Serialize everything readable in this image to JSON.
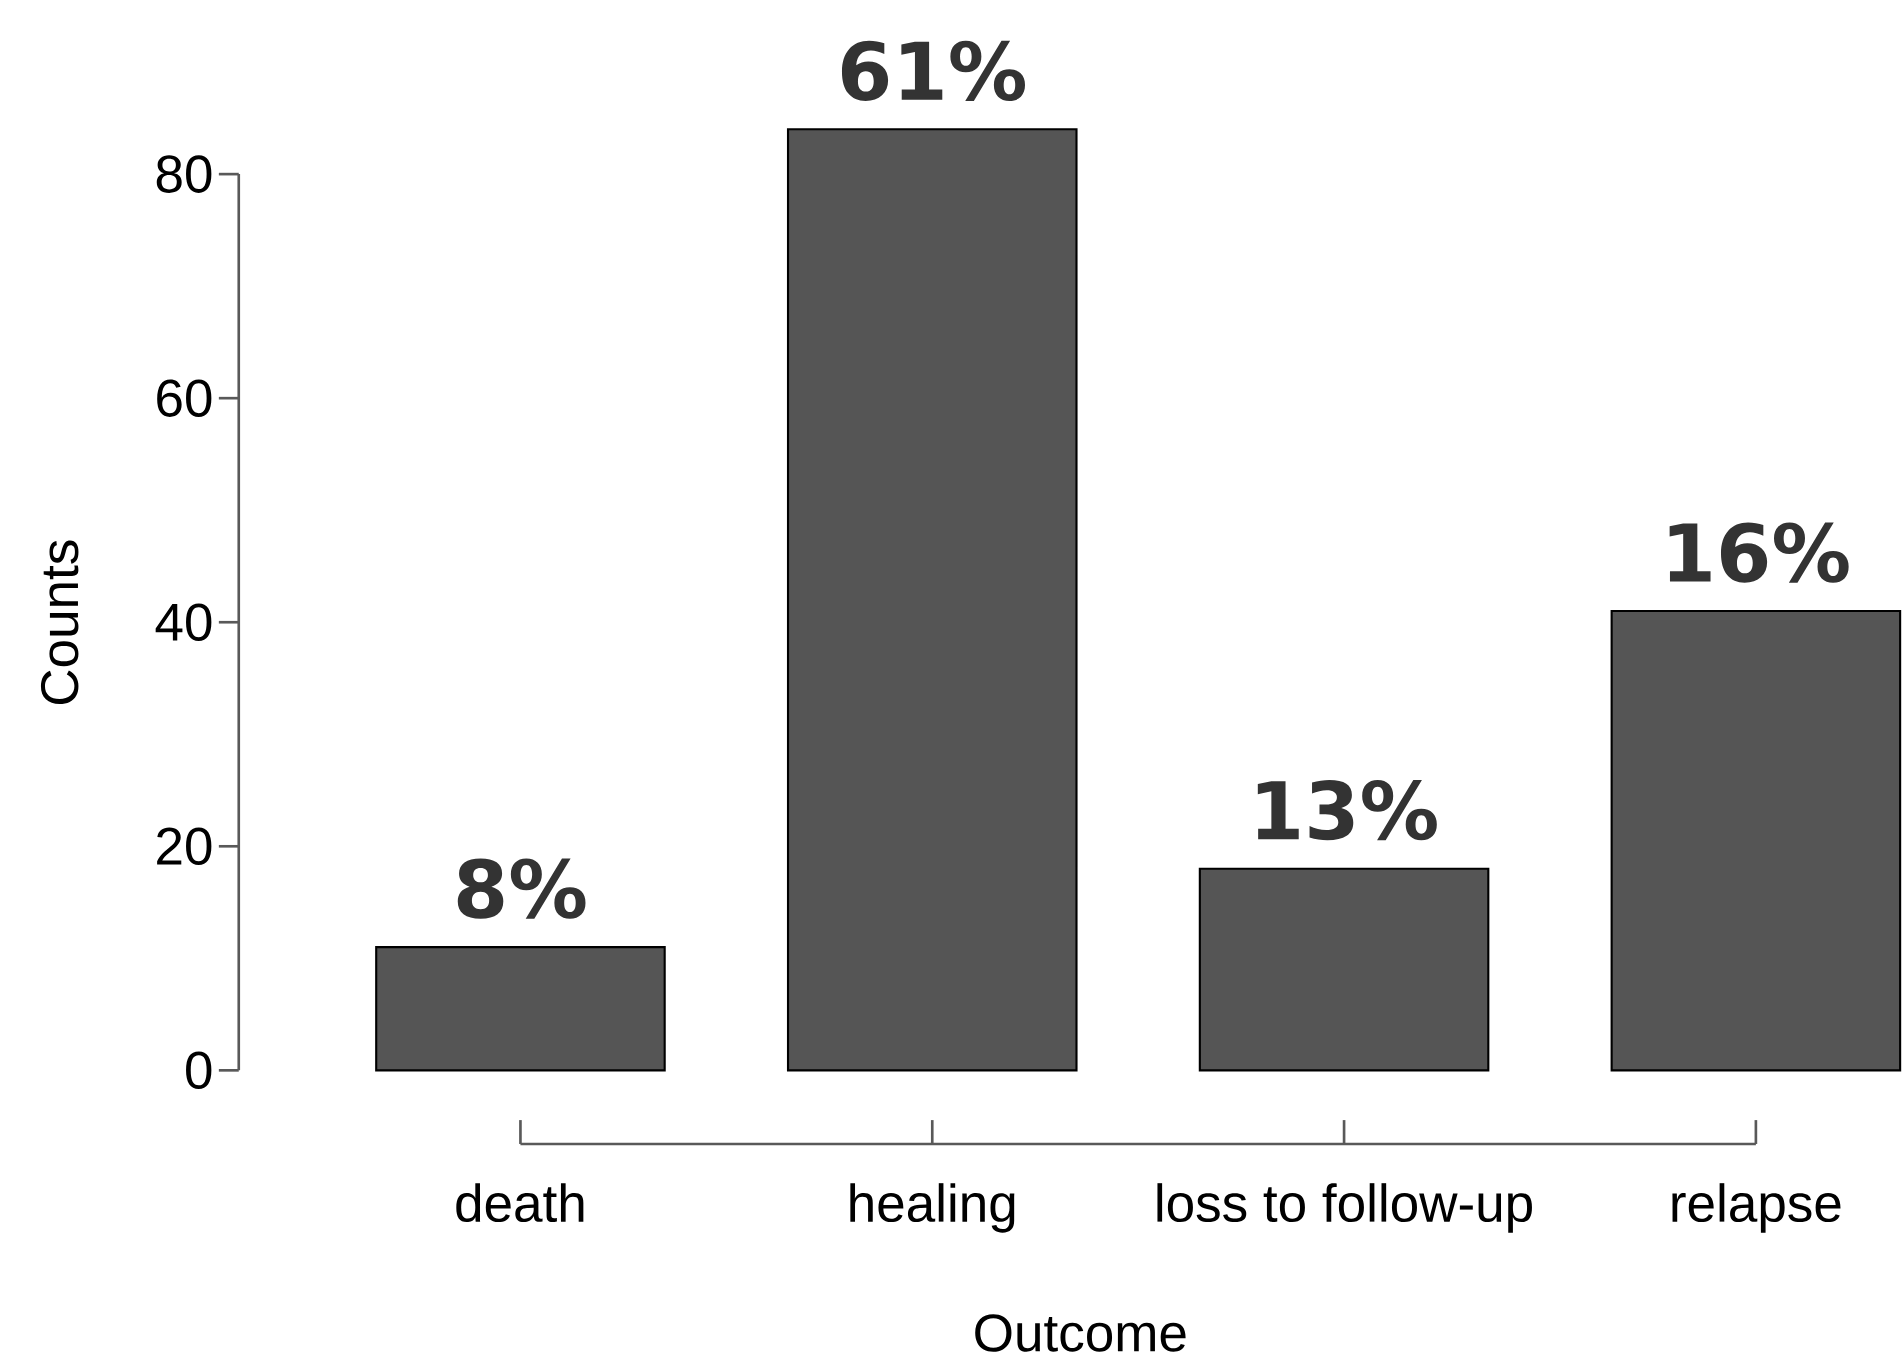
{
  "chart_data": {
    "type": "bar",
    "xlabel": "Outcome",
    "ylabel": "Counts",
    "categories": [
      "death",
      "healing",
      "loss to follow-up",
      "relapse"
    ],
    "values": [
      11,
      84,
      18,
      41
    ],
    "color": "#555555",
    "ylim": [
      0,
      84
    ],
    "yticks": [
      0,
      20,
      40,
      60,
      80
    ],
    "annotations": [
      {
        "text": "8%",
        "x": "death",
        "y": 11
      },
      {
        "text": "61%",
        "x": "healing",
        "y": 84
      },
      {
        "text": "13%",
        "x": "loss to follow-up",
        "y": 18
      },
      {
        "text": "16%",
        "x": "relapse",
        "y": 41
      }
    ]
  }
}
